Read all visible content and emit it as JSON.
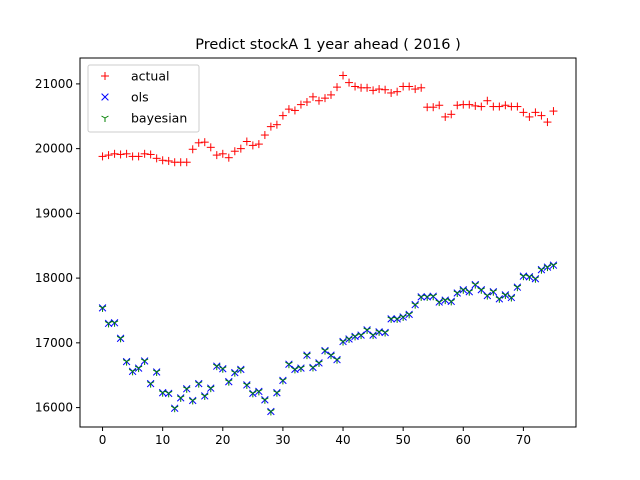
{
  "chart_data": {
    "type": "scatter",
    "title": "Predict stockA 1 year ahead ( 2016 )",
    "xlabel": "",
    "ylabel": "",
    "xlim": [
      -3.75,
      78.75
    ],
    "ylim": [
      15700,
      21400
    ],
    "xticks": [
      0,
      10,
      20,
      30,
      40,
      50,
      60,
      70
    ],
    "yticks": [
      16000,
      17000,
      18000,
      19000,
      20000,
      21000
    ],
    "grid": false,
    "legend_position": "top-left",
    "series": [
      {
        "name": "actual",
        "marker": "plus",
        "color": "#ff0000",
        "values": [
          19880,
          19900,
          19920,
          19910,
          19920,
          19880,
          19880,
          19920,
          19910,
          19850,
          19820,
          19810,
          19790,
          19790,
          19790,
          19990,
          20090,
          20100,
          20020,
          19900,
          19920,
          19860,
          19960,
          20000,
          20110,
          20050,
          20070,
          20210,
          20340,
          20370,
          20510,
          20610,
          20590,
          20680,
          20720,
          20800,
          20740,
          20780,
          20830,
          20950,
          21130,
          21020,
          20960,
          20940,
          20940,
          20900,
          20920,
          20910,
          20860,
          20880,
          20960,
          20960,
          20920,
          20940,
          20640,
          20640,
          20670,
          20490,
          20530,
          20670,
          20680,
          20680,
          20660,
          20650,
          20740,
          20650,
          20650,
          20670,
          20650,
          20650,
          20560,
          20490,
          20560,
          20510,
          20410,
          20580
        ]
      },
      {
        "name": "ols",
        "marker": "x",
        "color": "#0000ff",
        "values": [
          17540,
          17300,
          17310,
          17070,
          16710,
          16560,
          16610,
          16720,
          16370,
          16550,
          16230,
          16220,
          15990,
          16150,
          16290,
          16110,
          16370,
          16180,
          16300,
          16640,
          16600,
          16400,
          16540,
          16590,
          16350,
          16220,
          16250,
          16120,
          15940,
          16230,
          16420,
          16670,
          16590,
          16610,
          16810,
          16620,
          16690,
          16880,
          16810,
          16740,
          17020,
          17060,
          17100,
          17120,
          17200,
          17120,
          17170,
          17160,
          17370,
          17370,
          17400,
          17440,
          17590,
          17710,
          17710,
          17720,
          17630,
          17660,
          17640,
          17770,
          17820,
          17790,
          17900,
          17820,
          17730,
          17790,
          17680,
          17740,
          17700,
          17860,
          18030,
          18020,
          17990,
          18130,
          18170,
          18200
        ]
      },
      {
        "name": "bayesian",
        "marker": "tri-down",
        "color": "#008000",
        "values": [
          17540,
          17300,
          17310,
          17070,
          16710,
          16560,
          16610,
          16720,
          16370,
          16550,
          16230,
          16220,
          15990,
          16150,
          16290,
          16110,
          16370,
          16180,
          16300,
          16640,
          16600,
          16400,
          16540,
          16590,
          16350,
          16220,
          16250,
          16120,
          15940,
          16230,
          16420,
          16670,
          16590,
          16610,
          16810,
          16620,
          16690,
          16880,
          16810,
          16740,
          17020,
          17060,
          17100,
          17120,
          17200,
          17120,
          17170,
          17160,
          17370,
          17370,
          17400,
          17440,
          17590,
          17710,
          17710,
          17720,
          17630,
          17660,
          17640,
          17770,
          17820,
          17790,
          17900,
          17820,
          17730,
          17790,
          17680,
          17740,
          17700,
          17860,
          18030,
          18020,
          17990,
          18130,
          18170,
          18200
        ]
      }
    ]
  }
}
